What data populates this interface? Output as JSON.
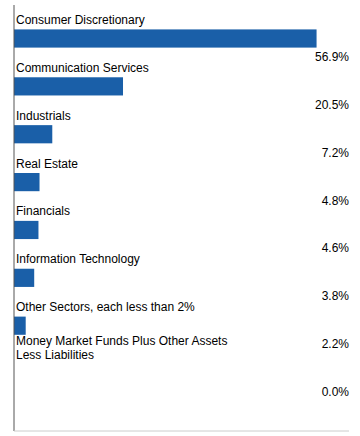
{
  "chart_data": {
    "type": "bar",
    "orientation": "horizontal",
    "categories": [
      "Consumer Discretionary",
      "Communication Services",
      "Industrials",
      "Real Estate",
      "Financials",
      "Information Technology",
      "Other Sectors, each less than 2%",
      "Money Market Funds Plus Other Assets\nLess Liabilities"
    ],
    "values": [
      56.9,
      20.5,
      7.2,
      4.8,
      4.6,
      3.8,
      2.2,
      0.0
    ],
    "value_labels": [
      "56.9%",
      "20.5%",
      "7.2%",
      "4.8%",
      "4.6%",
      "3.8%",
      "2.2%",
      "0.0%"
    ],
    "data_labels": true,
    "color": "#1a5fa8",
    "xlim": [
      0,
      63
    ],
    "tick_labels": false
  }
}
